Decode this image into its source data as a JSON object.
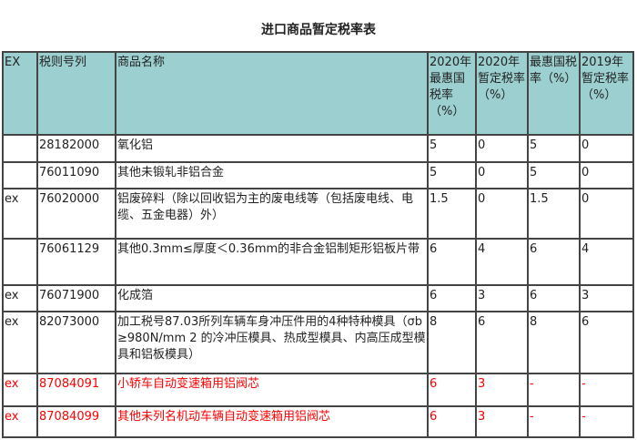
{
  "title": "进口商品暂定税率表",
  "headers": [
    "EX",
    "税则号列",
    "商品名称",
    "2020年最惠国税率（%）",
    "2020年暂定税率（%）",
    "最惠国税率（%）",
    "2019年暂定税率（%）"
  ],
  "rows": [
    {
      "ex": "",
      "code": "28182000",
      "name": "氧化铝",
      "mfn2020": "5",
      "temp2020": "0",
      "mfn": "5",
      "temp2019": "0"
    },
    {
      "ex": "",
      "code": "76011090",
      "name": "其他未锻轧非铝合金",
      "mfn2020": "5",
      "temp2020": "0",
      "mfn": "5",
      "temp2019": "0"
    },
    {
      "ex": "ex",
      "code": "76020000",
      "name": "铝废碎料（除以回收铝为主的废电线等（包括废电线、电缆、五金电器）外）",
      "mfn2020": "1.5",
      "temp2020": "0",
      "mfn": "1.5",
      "temp2019": "0"
    },
    {
      "ex": "",
      "code": "76061129",
      "name": "其他0.3mm≤厚度＜0.36mm的非合金铝制矩形铝板片带",
      "mfn2020": "6",
      "temp2020": "4",
      "mfn": "6",
      "temp2019": "4"
    },
    {
      "ex": "ex",
      "code": "76071900",
      "name": "化成箔",
      "mfn2020": "6",
      "temp2020": "3",
      "mfn": "6",
      "temp2019": "3"
    },
    {
      "ex": "ex",
      "code": "82073000",
      "name": "加工税号87.03所列车辆车身冲压件用的4种特种模具（σb≥980N/mm 2 的冷冲压模具、热成型模具、内高压成型模具和铝板模具）",
      "mfn2020": "8",
      "temp2020": "6",
      "mfn": "8",
      "temp2019": "6"
    },
    {
      "ex": "ex",
      "code": "87084091",
      "name": "小轿车自动变速箱用铝阀芯",
      "mfn2020": "6",
      "temp2020": "3",
      "mfn": "-",
      "temp2019": "-",
      "highlight": true
    },
    {
      "ex": "ex",
      "code": "87084099",
      "name": "其他未列名机动车辆自动变速箱用铝阀芯",
      "mfn2020": "6",
      "temp2020": "3",
      "mfn": "-",
      "temp2019": "-",
      "highlight": true
    }
  ],
  "colors": {
    "header_bg": "#9ccfcf",
    "highlight_text": "#ff0000"
  }
}
